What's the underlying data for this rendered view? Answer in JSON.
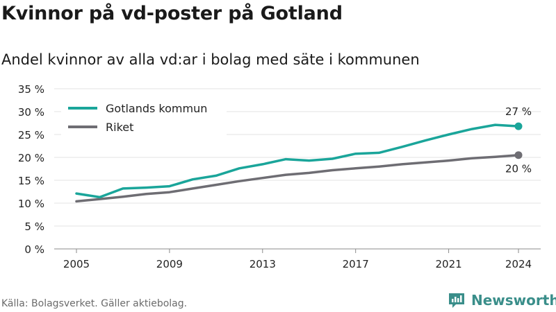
{
  "header": {
    "title": "Kvinnor på vd-poster på Gotland",
    "subtitle": "Andel kvinnor av alla vd:ar i bolag med säte i kommunen"
  },
  "footer": {
    "source": "Källa: Bolagsverket. Gäller aktiebolag.",
    "brand": "Newsworthy"
  },
  "chart_data": {
    "type": "line",
    "title": "Kvinnor på vd-poster på Gotland",
    "xlabel": "",
    "ylabel": "",
    "x": [
      2005,
      2006,
      2007,
      2008,
      2009,
      2010,
      2011,
      2012,
      2013,
      2014,
      2015,
      2016,
      2017,
      2018,
      2019,
      2020,
      2021,
      2022,
      2023,
      2024
    ],
    "xticks": [
      2005,
      2009,
      2013,
      2017,
      2021,
      2024
    ],
    "xtick_labels": [
      "2005",
      "2009",
      "2013",
      "2017",
      "2021",
      "2024"
    ],
    "ylim": [
      0,
      35
    ],
    "yticks": [
      0,
      5,
      10,
      15,
      20,
      25,
      30,
      35
    ],
    "ytick_labels": [
      "0 %",
      "5 %",
      "10 %",
      "15 %",
      "20 %",
      "25 %",
      "30 %",
      "35 %"
    ],
    "grid": true,
    "legend_position": "top-left",
    "series": [
      {
        "name": "Gotlands kommun",
        "color": "#1aa59a",
        "values": [
          12.1,
          11.3,
          13.2,
          13.4,
          13.7,
          15.2,
          16.0,
          17.6,
          18.5,
          19.6,
          19.3,
          19.7,
          20.8,
          21.0,
          22.3,
          23.7,
          25.0,
          26.2,
          27.1,
          26.8
        ],
        "end_label": "27 %"
      },
      {
        "name": "Riket",
        "color": "#6e6d73",
        "values": [
          10.4,
          10.9,
          11.4,
          12.0,
          12.4,
          13.2,
          14.0,
          14.8,
          15.5,
          16.2,
          16.6,
          17.2,
          17.6,
          18.0,
          18.5,
          18.9,
          19.3,
          19.8,
          20.1,
          20.5
        ],
        "end_label": "20 %"
      }
    ]
  }
}
